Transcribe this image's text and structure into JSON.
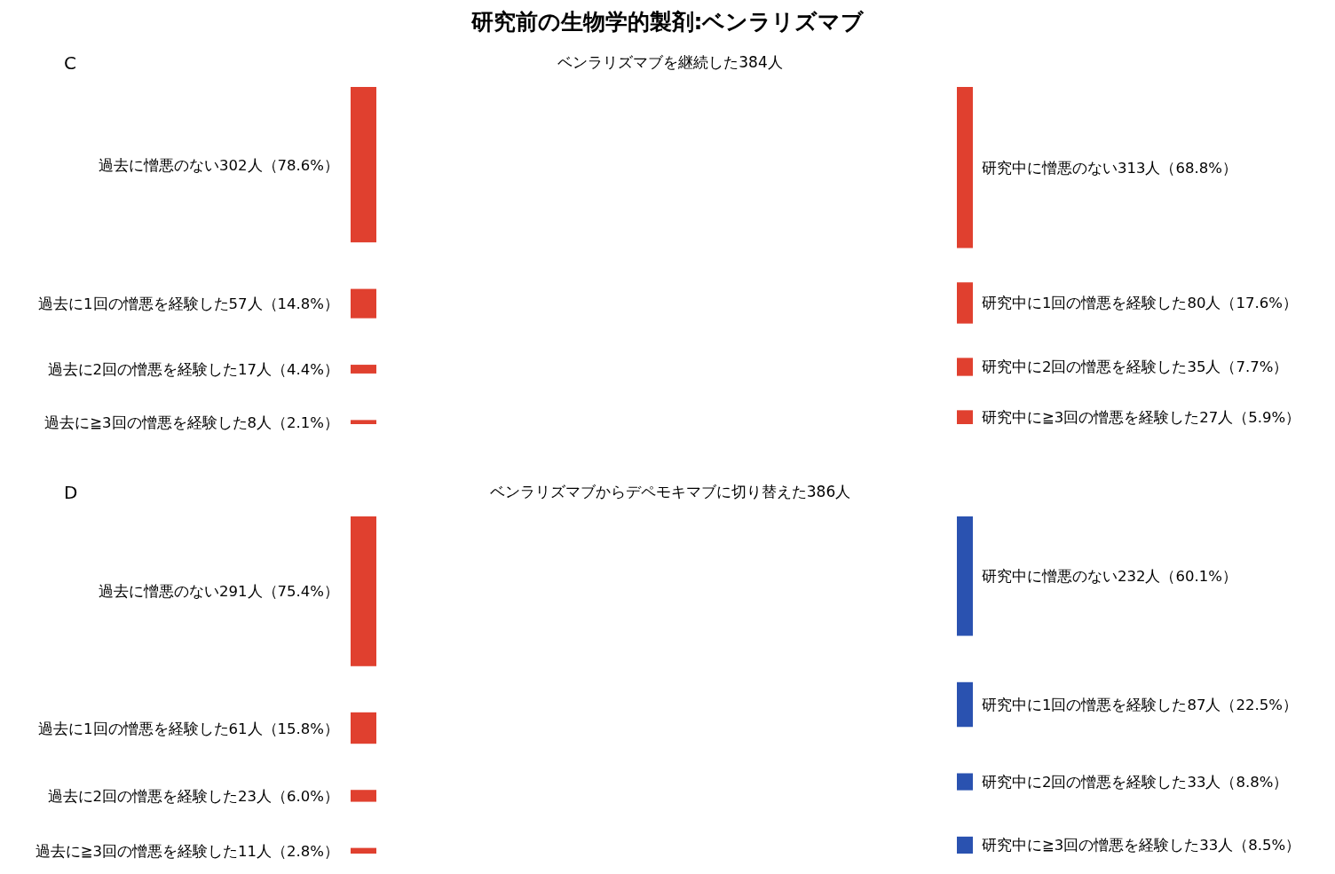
{
  "chart_data": [
    {
      "type": "other",
      "title": "研究前の生物学的製剤:ベンラリズマブ",
      "subtitle": "ベンラリズマブを継続した384人",
      "annotations": [
        "C"
      ],
      "categories": [
        "過去に憎悪のない",
        "過去に1回の憎悪を経験した",
        "過去に2回の憎悪を経験した",
        "過去に≧3回の憎悪を経験した"
      ],
      "y2_categories": [
        "研究中に憎悪のない",
        "研究中に1回の憎悪を経験した",
        "研究中に2回の憎悪を経験した",
        "研究中に≧3回の憎悪を経験した"
      ],
      "series": [
        {
          "color": "#e0402f",
          "values": [
            302,
            57,
            17,
            8
          ],
          "value_labels": [
            "302人（78.6%）",
            "57人（14.8%）",
            "17人（4.4%）",
            "8人（2.1%）"
          ]
        },
        {
          "color": "#e0402f",
          "values": [
            313,
            80,
            35,
            27
          ],
          "value_labels": [
            "313人（68.8%）",
            "80人（17.6%）",
            "35人（7.7%）",
            "27人（5.9%）"
          ]
        }
      ]
    },
    {
      "type": "other",
      "subtitle": "ベンラリズマブからデペモキマブに切り替えた386人",
      "annotations": [
        "D"
      ],
      "categories": [
        "過去に憎悪のない",
        "過去に1回の憎悪を経験した",
        "過去に2回の憎悪を経験した",
        "過去に≧3回の憎悪を経験した"
      ],
      "y2_categories": [
        "研究中に憎悪のない",
        "研究中に1回の憎悪を経験した",
        "研究中に2回の憎悪を経験した",
        "研究中に≧3回の憎悪を経験した"
      ],
      "series": [
        {
          "color": "#e0402f",
          "values": [
            291,
            61,
            23,
            11
          ],
          "value_labels": [
            "291人（75.4%）",
            "61人（15.8%）",
            "23人（6.0%）",
            "11人（2.8%）"
          ]
        },
        {
          "color": "#2a52b0",
          "values": [
            232,
            87,
            33,
            33
          ],
          "value_labels": [
            "232人（60.1%）",
            "87人（22.5%）",
            "33人（8.8%）",
            "33人（8.5%）"
          ]
        }
      ]
    }
  ]
}
